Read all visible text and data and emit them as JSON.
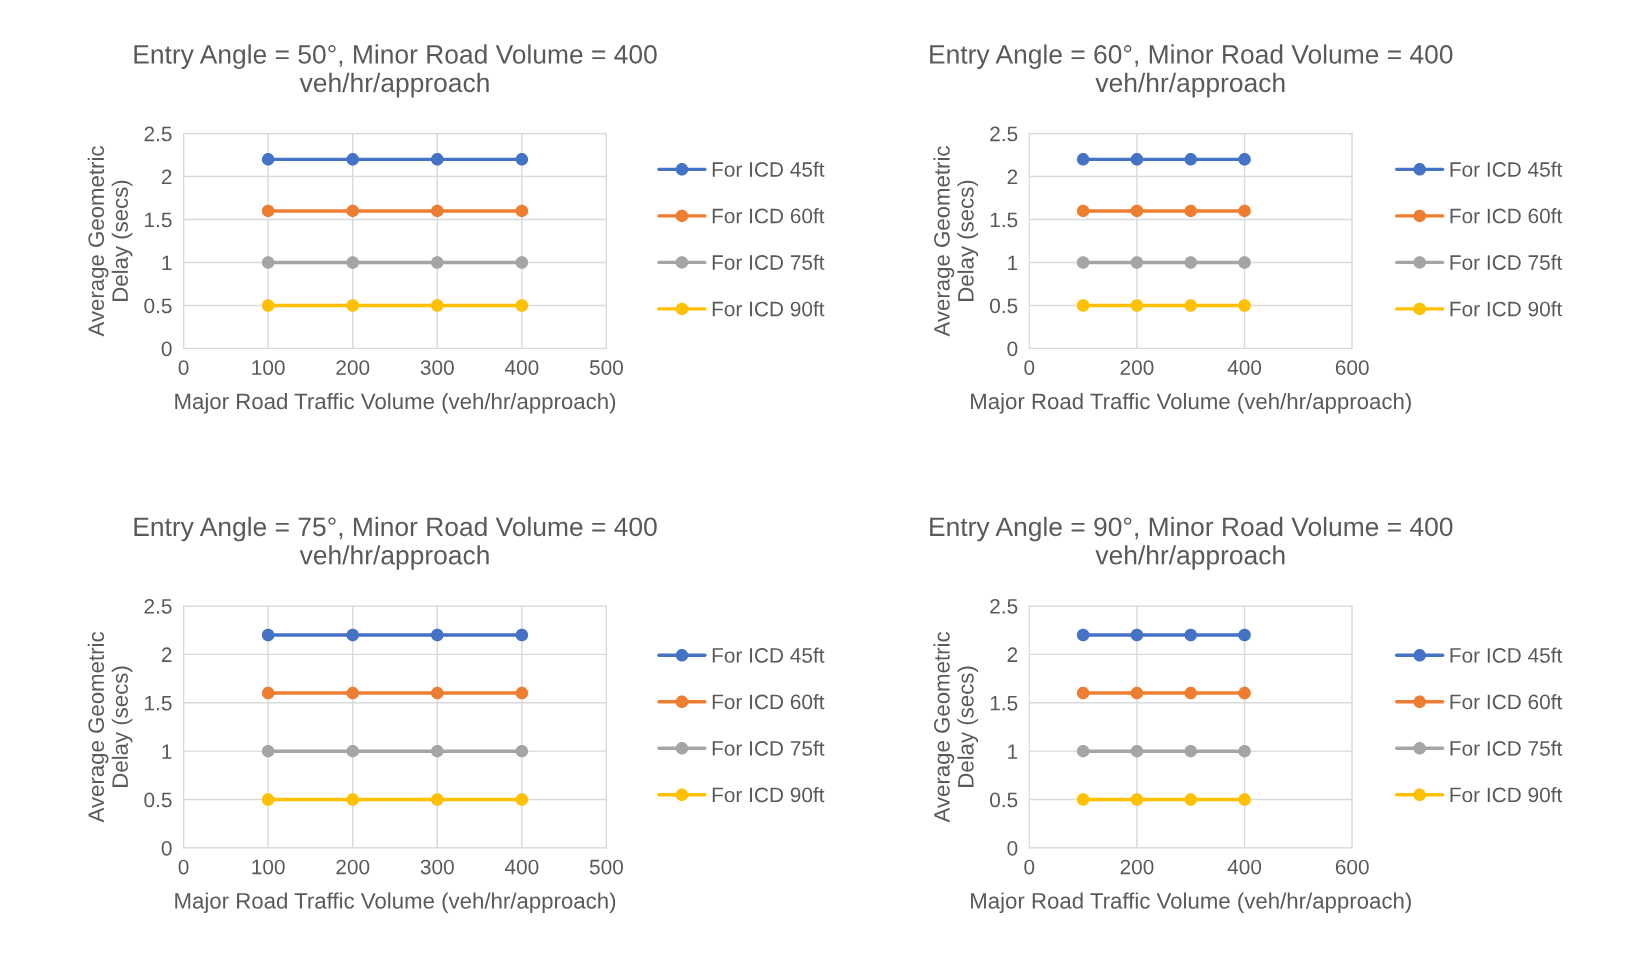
{
  "chart_data": [
    {
      "type": "line",
      "title": "Entry Angle = 50°, Minor Road Volume = 400\nveh/hr/approach",
      "xlabel": "Major Road Traffic Volume (veh/hr/approach)",
      "ylabel": "Average Geometric\nDelay (secs)",
      "x": [
        100,
        200,
        300,
        400
      ],
      "xlim": [
        0,
        500
      ],
      "xticks": [
        0,
        100,
        200,
        300,
        400,
        500
      ],
      "ylim": [
        0,
        2.5
      ],
      "yticks": [
        0,
        0.5,
        1,
        1.5,
        2,
        2.5
      ],
      "grid": true,
      "legend": "right",
      "marker": "circle",
      "line_style": "solid",
      "series": [
        {
          "name": "For ICD 45ft",
          "color": "#4472c4",
          "values": [
            2.2,
            2.2,
            2.2,
            2.2
          ]
        },
        {
          "name": "For ICD 60ft",
          "color": "#ed7d31",
          "values": [
            1.6,
            1.6,
            1.6,
            1.6
          ]
        },
        {
          "name": "For ICD 75ft",
          "color": "#a5a5a5",
          "values": [
            1,
            1,
            1,
            1
          ]
        },
        {
          "name": "For ICD 90ft",
          "color": "#ffc000",
          "values": [
            0.5,
            0.5,
            0.5,
            0.5
          ]
        }
      ]
    },
    {
      "type": "line",
      "title": "Entry Angle = 60°, Minor Road Volume = 400\nveh/hr/approach",
      "xlabel": "Major Road Traffic Volume (veh/hr/approach)",
      "ylabel": "Average Geometric\nDelay (secs)",
      "x": [
        100,
        200,
        300,
        400
      ],
      "xlim": [
        0,
        600
      ],
      "xticks": [
        0,
        200,
        400,
        600
      ],
      "ylim": [
        0,
        2.5
      ],
      "yticks": [
        0,
        0.5,
        1,
        1.5,
        2,
        2.5
      ],
      "grid": true,
      "legend": "right",
      "marker": "circle",
      "line_style": "solid",
      "series": [
        {
          "name": "For ICD 45ft",
          "color": "#4472c4",
          "values": [
            2.2,
            2.2,
            2.2,
            2.2
          ]
        },
        {
          "name": "For ICD 60ft",
          "color": "#ed7d31",
          "values": [
            1.6,
            1.6,
            1.6,
            1.6
          ]
        },
        {
          "name": "For ICD 75ft",
          "color": "#a5a5a5",
          "values": [
            1,
            1,
            1,
            1
          ]
        },
        {
          "name": "For ICD 90ft",
          "color": "#ffc000",
          "values": [
            0.5,
            0.5,
            0.5,
            0.5
          ]
        }
      ]
    },
    {
      "type": "line",
      "title": "Entry Angle = 75°, Minor Road Volume = 400\nveh/hr/approach",
      "xlabel": "Major Road Traffic Volume (veh/hr/approach)",
      "ylabel": "Average Geometric\nDelay (secs)",
      "x": [
        100,
        200,
        300,
        400
      ],
      "xlim": [
        0,
        500
      ],
      "xticks": [
        0,
        100,
        200,
        300,
        400,
        500
      ],
      "ylim": [
        0,
        2.5
      ],
      "yticks": [
        0,
        0.5,
        1,
        1.5,
        2,
        2.5
      ],
      "grid": true,
      "legend": "right",
      "marker": "circle",
      "line_style": "solid",
      "series": [
        {
          "name": "For ICD 45ft",
          "color": "#4472c4",
          "values": [
            2.2,
            2.2,
            2.2,
            2.2
          ]
        },
        {
          "name": "For ICD 60ft",
          "color": "#ed7d31",
          "values": [
            1.6,
            1.6,
            1.6,
            1.6
          ]
        },
        {
          "name": "For ICD 75ft",
          "color": "#a5a5a5",
          "values": [
            1,
            1,
            1,
            1
          ]
        },
        {
          "name": "For ICD 90ft",
          "color": "#ffc000",
          "values": [
            0.5,
            0.5,
            0.5,
            0.5
          ]
        }
      ]
    },
    {
      "type": "line",
      "title": "Entry Angle = 90°, Minor Road Volume = 400\nveh/hr/approach",
      "xlabel": "Major Road Traffic Volume (veh/hr/approach)",
      "ylabel": "Average Geometric\nDelay (secs)",
      "x": [
        100,
        200,
        300,
        400
      ],
      "xlim": [
        0,
        600
      ],
      "xticks": [
        0,
        200,
        400,
        600
      ],
      "ylim": [
        0,
        2.5
      ],
      "yticks": [
        0,
        0.5,
        1,
        1.5,
        2,
        2.5
      ],
      "grid": true,
      "legend": "right",
      "marker": "circle",
      "line_style": "solid",
      "series": [
        {
          "name": "For ICD 45ft",
          "color": "#4472c4",
          "values": [
            2.2,
            2.2,
            2.2,
            2.2
          ]
        },
        {
          "name": "For ICD 60ft",
          "color": "#ed7d31",
          "values": [
            1.6,
            1.6,
            1.6,
            1.6
          ]
        },
        {
          "name": "For ICD 75ft",
          "color": "#a5a5a5",
          "values": [
            1,
            1,
            1,
            1
          ]
        },
        {
          "name": "For ICD 90ft",
          "color": "#ffc000",
          "values": [
            0.5,
            0.5,
            0.5,
            0.5
          ]
        }
      ]
    }
  ]
}
